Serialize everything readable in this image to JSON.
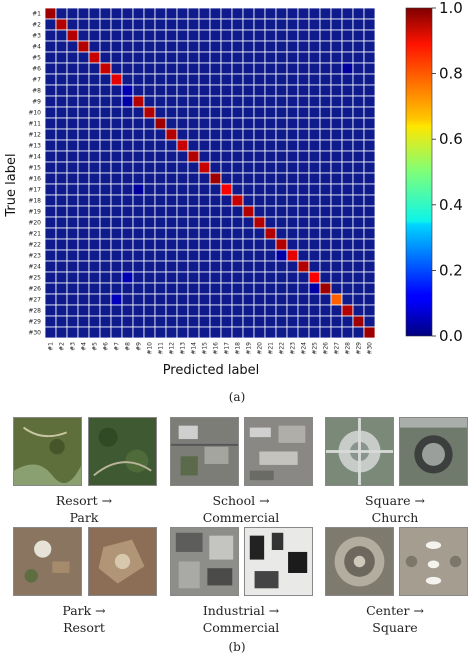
{
  "chart_data": {
    "type": "heatmap",
    "xlabel": "Predicted label",
    "ylabel": "True label",
    "x_ticks": [
      "#1",
      "#2",
      "#3",
      "#4",
      "#5",
      "#6",
      "#7",
      "#8",
      "#9",
      "#10",
      "#11",
      "#12",
      "#13",
      "#14",
      "#15",
      "#16",
      "#17",
      "#18",
      "#19",
      "#20",
      "#21",
      "#22",
      "#23",
      "#24",
      "#25",
      "#26",
      "#27",
      "#28",
      "#29",
      "#30"
    ],
    "y_ticks": [
      "#1",
      "#2",
      "#3",
      "#4",
      "#5",
      "#6",
      "#7",
      "#8",
      "#9",
      "#10",
      "#11",
      "#12",
      "#13",
      "#14",
      "#15",
      "#16",
      "#17",
      "#18",
      "#19",
      "#20",
      "#21",
      "#22",
      "#23",
      "#24",
      "#25",
      "#26",
      "#27",
      "#28",
      "#29",
      "#30"
    ],
    "diagonal": [
      0.97,
      0.95,
      0.95,
      0.95,
      0.93,
      0.93,
      0.9,
      0.82,
      0.95,
      0.95,
      0.97,
      0.95,
      0.93,
      0.95,
      0.93,
      0.97,
      0.88,
      0.93,
      0.95,
      0.95,
      0.95,
      0.95,
      0.9,
      0.95,
      0.88,
      0.97,
      0.78,
      0.95,
      0.97,
      0.97
    ],
    "off_diagonal": [
      {
        "row": 8,
        "col": 8,
        "value": 0.05
      },
      {
        "row": 9,
        "col": 8,
        "value": 0.04
      },
      {
        "row": 17,
        "col": 9,
        "value": 0.03
      },
      {
        "row": 25,
        "col": 8,
        "value": 0.05
      },
      {
        "row": 27,
        "col": 7,
        "value": 0.06
      },
      {
        "row": 26,
        "col": 25,
        "value": 0.04
      },
      {
        "row": 23,
        "col": 22,
        "value": 0.04
      },
      {
        "row": 6,
        "col": 28,
        "value": 0.03
      }
    ],
    "colorbar": {
      "min": 0.0,
      "max": 1.0,
      "ticks": [
        "0.0",
        "0.2",
        "0.4",
        "0.6",
        "0.8",
        "1.0"
      ],
      "colormap": "jet"
    },
    "grid": true
  },
  "caption_a": "(a)",
  "caption_b": "(b)",
  "examples": [
    {
      "line1": "Resort →",
      "line2": "Park"
    },
    {
      "line1": "School →",
      "line2": "Commercial"
    },
    {
      "line1": "Square →",
      "line2": "Church"
    },
    {
      "line1": "Park →",
      "line2": "Resort"
    },
    {
      "line1": "Industrial →",
      "line2": "Commercial"
    },
    {
      "line1": "Center →",
      "line2": "Square"
    }
  ],
  "colors": {
    "low": "#0f1a8f",
    "grid": "#ffffff"
  }
}
